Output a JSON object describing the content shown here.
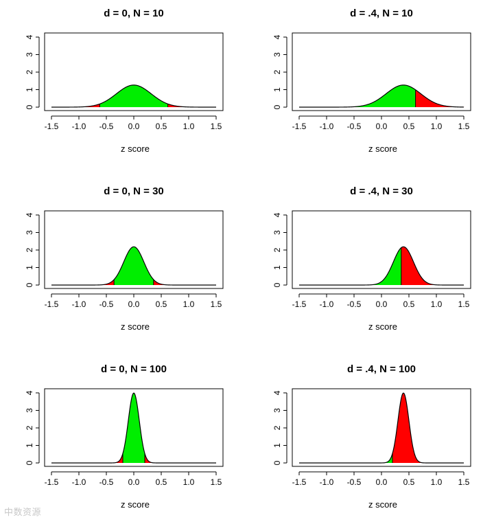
{
  "watermark": "中数资源",
  "colors": {
    "accept_region": "#00ee00",
    "reject_region": "#ff0000",
    "curve": "#000000",
    "axis": "#000000"
  },
  "chart_data": [
    {
      "type": "area",
      "title": "d = 0, N = 10",
      "xlabel": "z score",
      "ylabel": "",
      "mean": 0,
      "sd": 0.3162,
      "critical_lower": -0.62,
      "critical_upper": 0.62,
      "xlim": [
        -1.6,
        1.6
      ],
      "ylim": [
        0,
        4.4
      ],
      "xticks": [
        -1.5,
        -1.0,
        -0.5,
        0.0,
        0.5,
        1.0,
        1.5
      ],
      "xtick_labels": [
        "-1.5",
        "-1.0",
        "-0.5",
        "0.0",
        "0.5",
        "1.0",
        "1.5"
      ],
      "yticks": [
        0,
        1,
        2,
        3,
        4
      ],
      "ytick_labels": [
        "0",
        "1",
        "2",
        "3",
        "4"
      ]
    },
    {
      "type": "area",
      "title": "d = .4, N = 10",
      "xlabel": "z score",
      "ylabel": "",
      "mean": 0.4,
      "sd": 0.3162,
      "critical_lower": -0.62,
      "critical_upper": 0.62,
      "xlim": [
        -1.6,
        1.6
      ],
      "ylim": [
        0,
        4.4
      ],
      "xticks": [
        -1.5,
        -1.0,
        -0.5,
        0.0,
        0.5,
        1.0,
        1.5
      ],
      "xtick_labels": [
        "-1.5",
        "-1.0",
        "-0.5",
        "0.0",
        "0.5",
        "1.0",
        "1.5"
      ],
      "yticks": [
        0,
        1,
        2,
        3,
        4
      ],
      "ytick_labels": [
        "0",
        "1",
        "2",
        "3",
        "4"
      ]
    },
    {
      "type": "area",
      "title": "d = 0, N = 30",
      "xlabel": "z score",
      "ylabel": "",
      "mean": 0,
      "sd": 0.1826,
      "critical_lower": -0.36,
      "critical_upper": 0.36,
      "xlim": [
        -1.6,
        1.6
      ],
      "ylim": [
        0,
        4.4
      ],
      "xticks": [
        -1.5,
        -1.0,
        -0.5,
        0.0,
        0.5,
        1.0,
        1.5
      ],
      "xtick_labels": [
        "-1.5",
        "-1.0",
        "-0.5",
        "0.0",
        "0.5",
        "1.0",
        "1.5"
      ],
      "yticks": [
        0,
        1,
        2,
        3,
        4
      ],
      "ytick_labels": [
        "0",
        "1",
        "2",
        "3",
        "4"
      ]
    },
    {
      "type": "area",
      "title": "d = .4, N = 30",
      "xlabel": "z score",
      "ylabel": "",
      "mean": 0.4,
      "sd": 0.1826,
      "critical_lower": -0.36,
      "critical_upper": 0.36,
      "xlim": [
        -1.6,
        1.6
      ],
      "ylim": [
        0,
        4.4
      ],
      "xticks": [
        -1.5,
        -1.0,
        -0.5,
        0.0,
        0.5,
        1.0,
        1.5
      ],
      "xtick_labels": [
        "-1.5",
        "-1.0",
        "-0.5",
        "0.0",
        "0.5",
        "1.0",
        "1.5"
      ],
      "yticks": [
        0,
        1,
        2,
        3,
        4
      ],
      "ytick_labels": [
        "0",
        "1",
        "2",
        "3",
        "4"
      ]
    },
    {
      "type": "area",
      "title": "d = 0, N = 100",
      "xlabel": "z score",
      "ylabel": "",
      "mean": 0,
      "sd": 0.1,
      "critical_lower": -0.2,
      "critical_upper": 0.2,
      "xlim": [
        -1.6,
        1.6
      ],
      "ylim": [
        0,
        4.4
      ],
      "xticks": [
        -1.5,
        -1.0,
        -0.5,
        0.0,
        0.5,
        1.0,
        1.5
      ],
      "xtick_labels": [
        "-1.5",
        "-1.0",
        "-0.5",
        "0.0",
        "0.5",
        "1.0",
        "1.5"
      ],
      "yticks": [
        0,
        1,
        2,
        3,
        4
      ],
      "ytick_labels": [
        "0",
        "1",
        "2",
        "3",
        "4"
      ]
    },
    {
      "type": "area",
      "title": "d = .4, N = 100",
      "xlabel": "z score",
      "ylabel": "",
      "mean": 0.4,
      "sd": 0.1,
      "critical_lower": -0.2,
      "critical_upper": 0.2,
      "xlim": [
        -1.6,
        1.6
      ],
      "ylim": [
        0,
        4.4
      ],
      "xticks": [
        -1.5,
        -1.0,
        -0.5,
        0.0,
        0.5,
        1.0,
        1.5
      ],
      "xtick_labels": [
        "-1.5",
        "-1.0",
        "-0.5",
        "0.0",
        "0.5",
        "1.0",
        "1.5"
      ],
      "yticks": [
        0,
        1,
        2,
        3,
        4
      ],
      "ytick_labels": [
        "0",
        "1",
        "2",
        "3",
        "4"
      ]
    }
  ]
}
